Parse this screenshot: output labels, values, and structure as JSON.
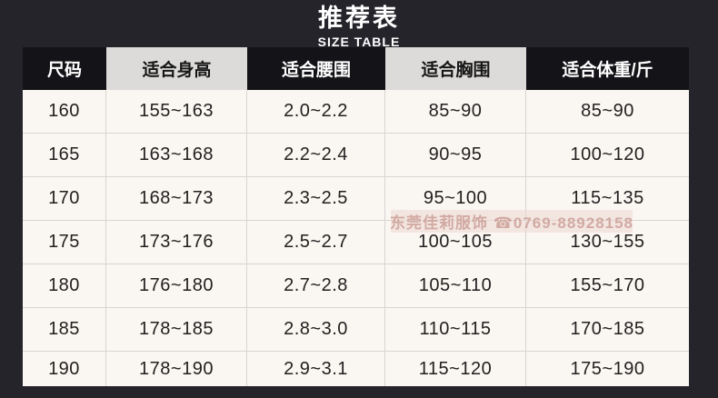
{
  "page": {
    "title": "推荐表",
    "subtitle": "SIZE TABLE"
  },
  "colors": {
    "page_bg": "#26242b",
    "header_dark": "#141418",
    "header_light": "#dcdbd9",
    "body_bg": "#faf6f2",
    "grid_line": "#d8d4d1",
    "body_text": "#211f1f"
  },
  "table": {
    "columns": [
      "尺码",
      "适合身高",
      "适合腰围",
      "适合胸围",
      "适合体重/斤"
    ],
    "rows": [
      [
        "160",
        "155~163",
        "2.0~2.2",
        "85~90",
        "85~90"
      ],
      [
        "165",
        "163~168",
        "2.2~2.4",
        "90~95",
        "100~120"
      ],
      [
        "170",
        "168~173",
        "2.3~2.5",
        "95~100",
        "115~135"
      ],
      [
        "175",
        "173~176",
        "2.5~2.7",
        "100~105",
        "130~155"
      ],
      [
        "180",
        "176~180",
        "2.7~2.8",
        "105~110",
        "155~170"
      ],
      [
        "185",
        "178~185",
        "2.8~3.0",
        "110~115",
        "170~185"
      ],
      [
        "190",
        "178~190",
        "2.9~3.1",
        "115~120",
        "175~190"
      ]
    ]
  },
  "watermark": {
    "text": "东莞佳莉服饰 ☎0769-88928158"
  }
}
